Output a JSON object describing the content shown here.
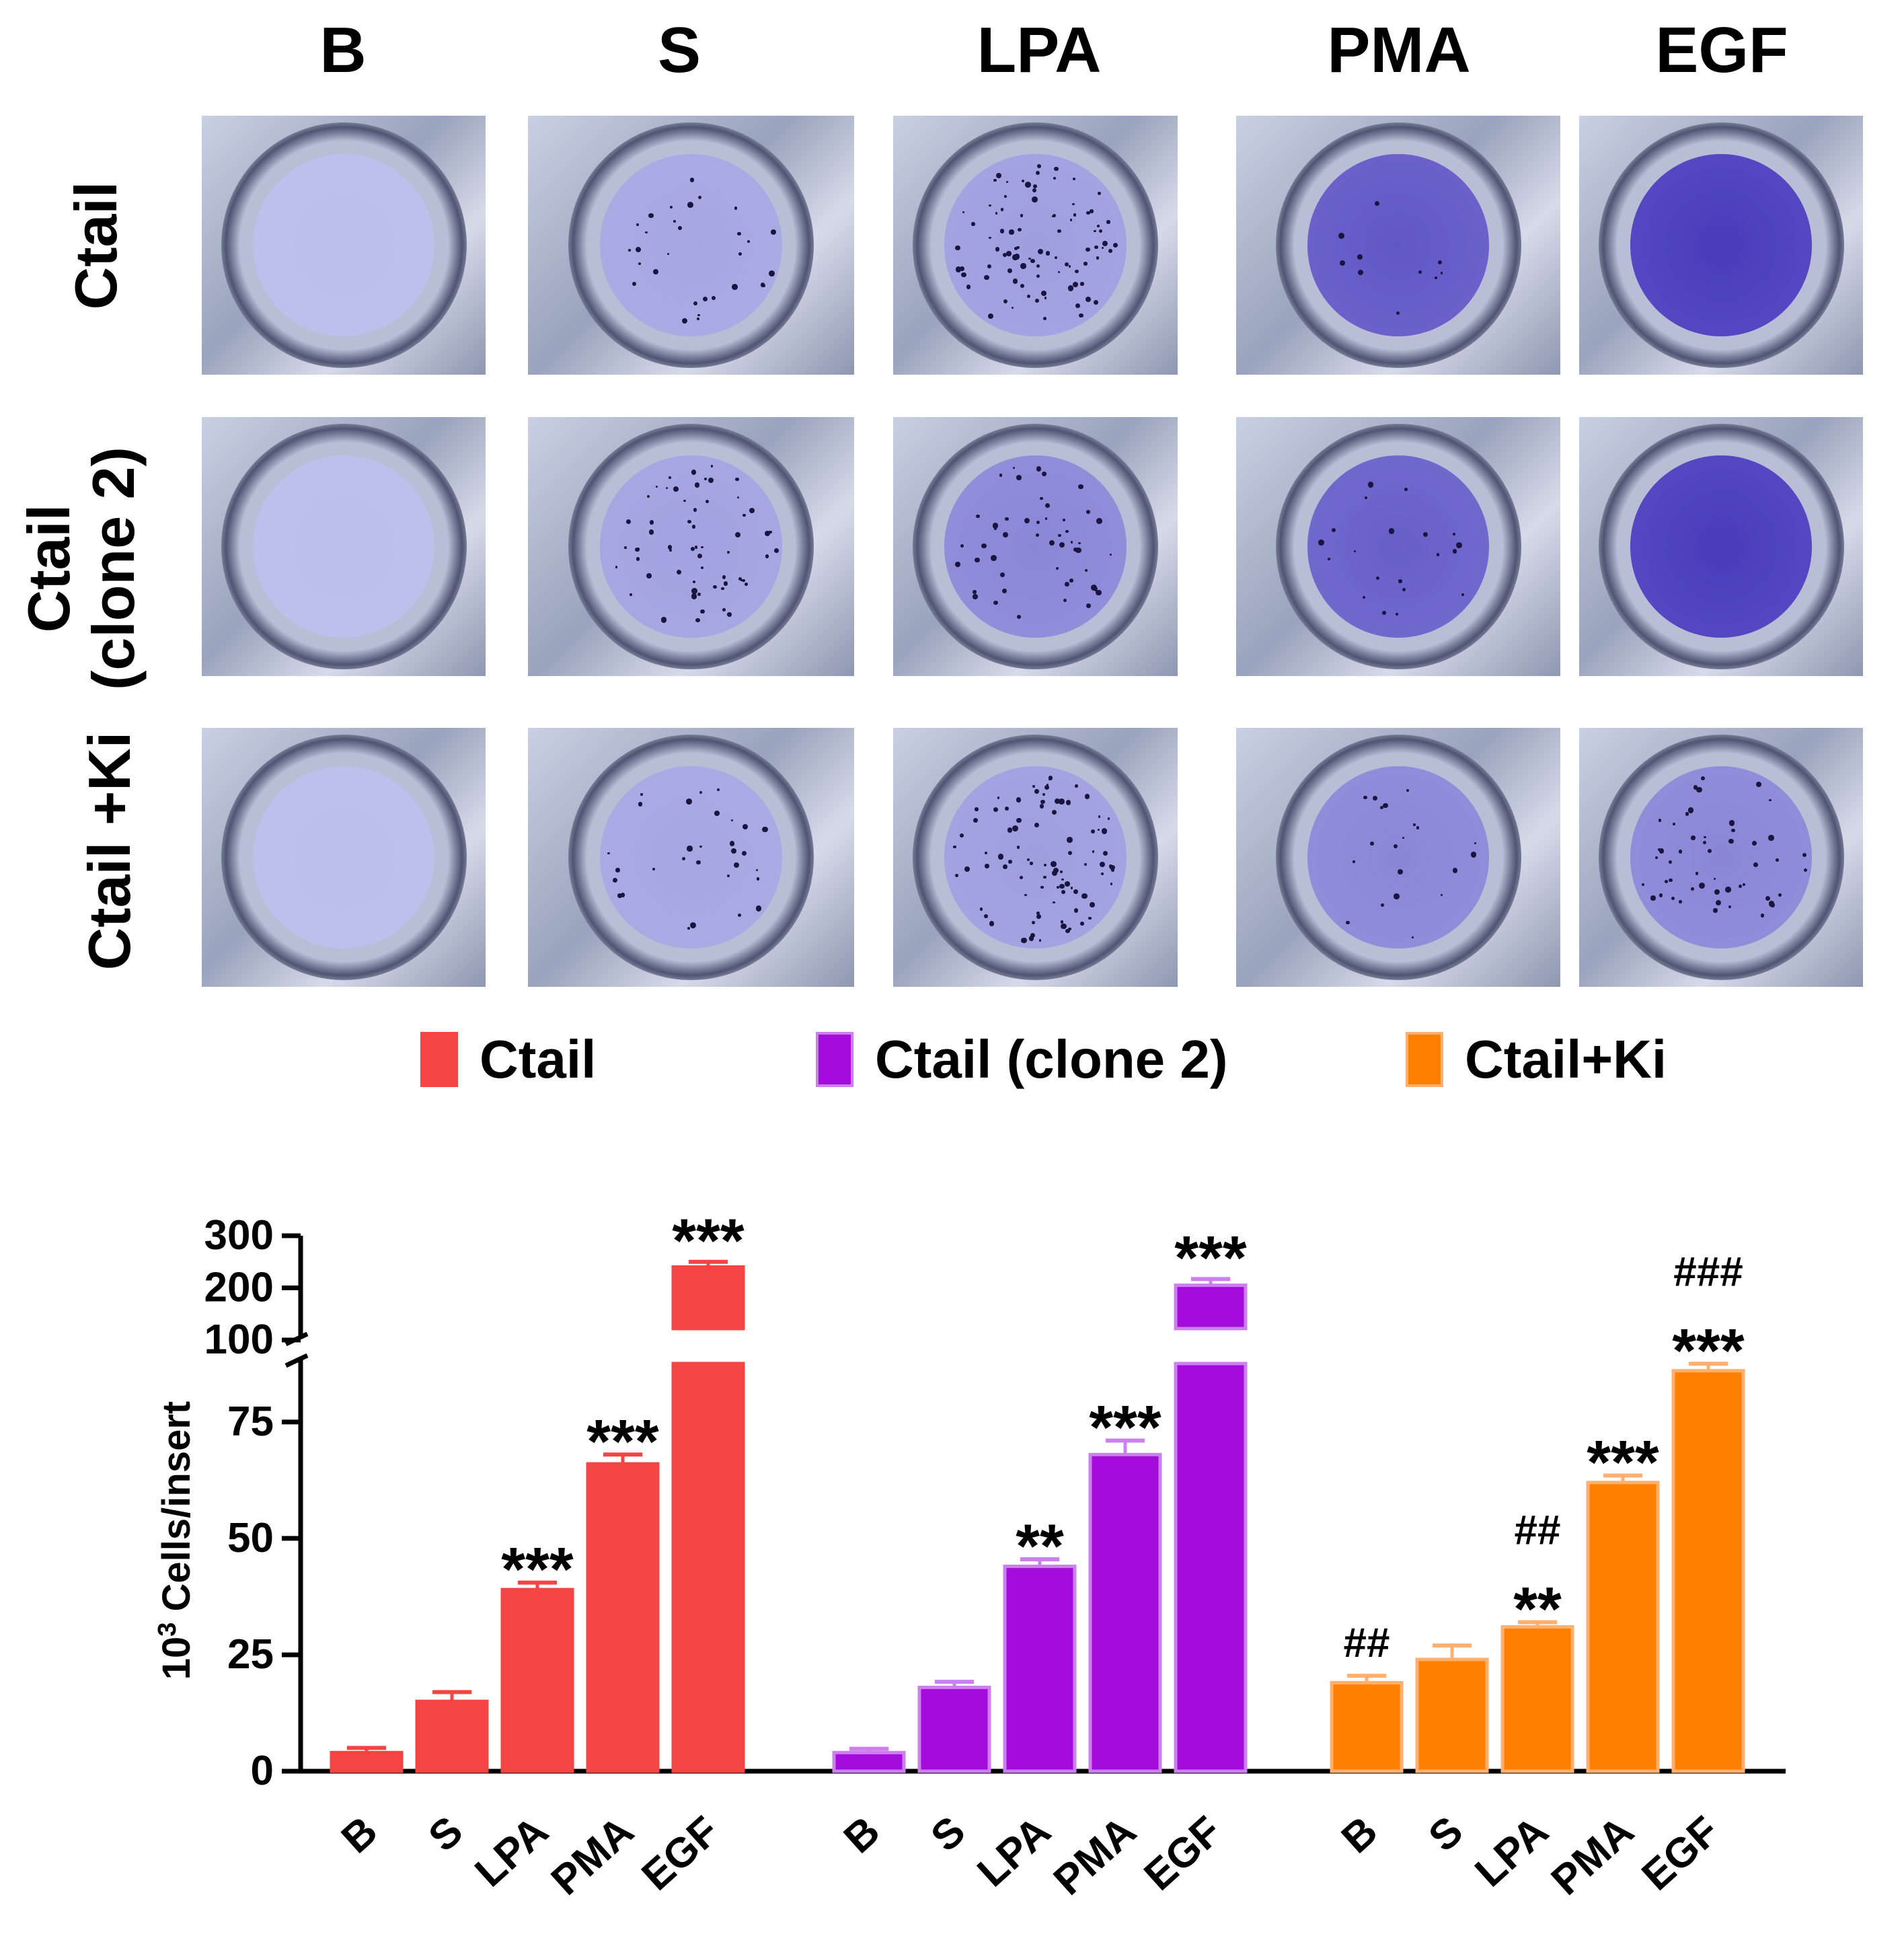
{
  "panel_images": {
    "column_labels": [
      "B",
      "S",
      "LPA",
      "PMA",
      "EGF"
    ],
    "row_labels": [
      "Ctail",
      "Ctail (clone 2)",
      "Ctail +Ki"
    ],
    "row_label_lines": [
      [
        "Ctail"
      ],
      [
        "Ctail",
        "(clone 2)"
      ],
      [
        "Ctail +Ki"
      ]
    ],
    "staining": [
      [
        "very light",
        "light patchy",
        "dotted",
        "dense half",
        "dense full"
      ],
      [
        "very light",
        "light dotted",
        "patchy",
        "dense",
        "dense full"
      ],
      [
        "very light",
        "light patchy",
        "dotted",
        "light dense",
        "patchy"
      ]
    ],
    "stain_color": "#3d2fb8"
  },
  "legend": [
    {
      "label": "Ctail",
      "color": "#f44444",
      "edge": "#f44444"
    },
    {
      "label": "Ctail (clone 2)",
      "color": "#a40cdc",
      "edge": "#cc80ee"
    },
    {
      "label": "Ctail+Ki",
      "color": "#ff8000",
      "edge": "#ffb070"
    }
  ],
  "chart_data": {
    "type": "bar",
    "title": "",
    "ylabel": "10",
    "ylabel_sup": "3",
    "ylabel_rest": " Cells/insert",
    "y_axis_broken": true,
    "lower_segment": {
      "ylim": [
        0,
        90
      ],
      "ticks": [
        0,
        25,
        50,
        75
      ]
    },
    "upper_segment": {
      "ylim": [
        100,
        300
      ],
      "ticks": [
        100,
        200,
        300
      ]
    },
    "categories": [
      "B",
      "S",
      "LPA",
      "PMA",
      "EGF"
    ],
    "series": [
      {
        "name": "Ctail",
        "values": [
          4,
          15,
          39,
          66,
          240
        ],
        "errors": [
          1,
          2,
          1.5,
          2,
          10
        ],
        "annotations": [
          "",
          "",
          "***",
          "***",
          "***"
        ]
      },
      {
        "name": "Ctail (clone 2)",
        "values": [
          4,
          18,
          44,
          68,
          205
        ],
        "errors": [
          0.8,
          1.2,
          1.5,
          3,
          12
        ],
        "annotations": [
          "",
          "",
          "**",
          "***",
          "***"
        ]
      },
      {
        "name": "Ctail+Ki",
        "values": [
          19,
          24,
          31,
          62,
          86
        ],
        "errors": [
          1.5,
          3,
          1,
          1.5,
          1.5
        ],
        "annotations": [
          "##",
          "",
          "##\n**",
          "***",
          "###\n***"
        ]
      }
    ]
  }
}
